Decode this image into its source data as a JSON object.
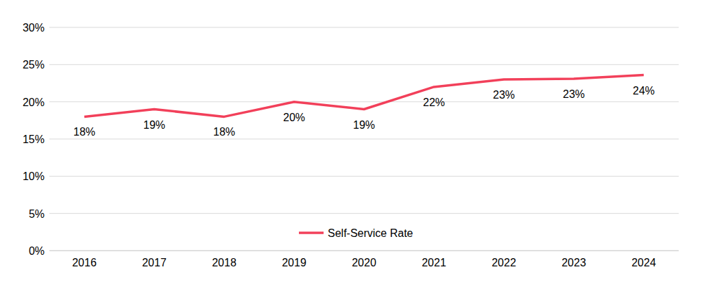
{
  "chart_data": {
    "type": "line",
    "categories": [
      "2016",
      "2017",
      "2018",
      "2019",
      "2020",
      "2021",
      "2022",
      "2023",
      "2024"
    ],
    "series": [
      {
        "name": "Self-Service Rate",
        "color": "#f2405a",
        "values": [
          18,
          19,
          18,
          20,
          19,
          22,
          23,
          23.1,
          23.6
        ],
        "value_labels": [
          "18%",
          "19%",
          "18%",
          "20%",
          "19%",
          "22%",
          "23%",
          "23%",
          "24%"
        ]
      }
    ],
    "ylim": [
      0,
      30
    ],
    "yticks": [
      {
        "value": 0,
        "label": "0%"
      },
      {
        "value": 5,
        "label": "5%"
      },
      {
        "value": 10,
        "label": "10%"
      },
      {
        "value": 15,
        "label": "15%"
      },
      {
        "value": 20,
        "label": "20%"
      },
      {
        "value": 25,
        "label": "25%"
      },
      {
        "value": 30,
        "label": "30%"
      }
    ],
    "grid": true,
    "legend": "bottom",
    "data_labels": true
  }
}
